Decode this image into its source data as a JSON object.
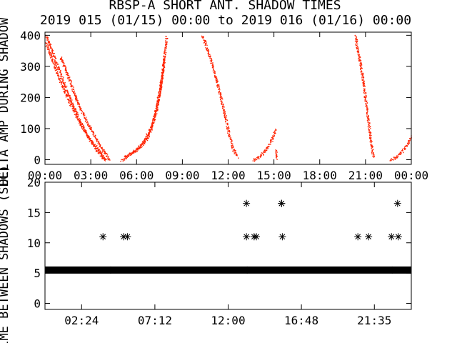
{
  "title": "RBSP-A SHORT ANT. SHADOW TIMES",
  "subtitle": "2019 015 (01/15) 00:00 to 2019 016 (01/16) 00:00",
  "colors": {
    "scatter": "#ff2200",
    "axes": "#000000",
    "background": "#ffffff"
  },
  "chart_data": [
    {
      "type": "scatter",
      "ylabel": "DELTA AMP DURING SHADOW",
      "ylim": [
        -15,
        410
      ],
      "yticks": [
        0,
        100,
        200,
        300,
        400
      ],
      "xlim": [
        0,
        24
      ],
      "xtick_labels": [
        "00:00",
        "03:00",
        "06:00",
        "09:00",
        "12:00",
        "15:00",
        "18:00",
        "21:00",
        "00:00"
      ],
      "xtick_values": [
        0,
        3,
        6,
        9,
        12,
        15,
        18,
        21,
        24
      ],
      "marker_color": "#ff2200",
      "series": [
        {
          "x": [
            0.05,
            0.6,
            1.2,
            1.8,
            2.4,
            3.0,
            3.6,
            4.0
          ],
          "y": [
            400,
            330,
            250,
            175,
            110,
            60,
            25,
            0
          ]
        },
        {
          "x": [
            0.05,
            0.7,
            1.4,
            2.1,
            2.8,
            3.4,
            3.9
          ],
          "y": [
            375,
            290,
            205,
            135,
            75,
            30,
            0
          ]
        },
        {
          "x": [
            1.0,
            1.5,
            2.0,
            2.6,
            3.2,
            3.8,
            4.2
          ],
          "y": [
            330,
            270,
            200,
            135,
            80,
            30,
            0
          ]
        },
        {
          "x": [
            5.0,
            5.6,
            6.2,
            6.8,
            7.3,
            7.7,
            7.95
          ],
          "y": [
            0,
            20,
            40,
            80,
            160,
            280,
            400
          ]
        },
        {
          "x": [
            5.2,
            5.8,
            6.4,
            7.0,
            7.5,
            7.8
          ],
          "y": [
            10,
            28,
            55,
            110,
            220,
            330
          ]
        },
        {
          "x": [
            10.3,
            10.8,
            11.3,
            11.7,
            12.0,
            12.3,
            12.6
          ],
          "y": [
            400,
            330,
            240,
            160,
            90,
            35,
            10
          ]
        },
        {
          "x": [
            13.6,
            14.0,
            14.4,
            14.8,
            15.1
          ],
          "y": [
            0,
            10,
            30,
            60,
            100
          ]
        },
        {
          "x": [
            15.1,
            15.2
          ],
          "y": [
            30,
            5
          ]
        },
        {
          "x": [
            20.3,
            20.6,
            20.9,
            21.1,
            21.3,
            21.5
          ],
          "y": [
            400,
            320,
            230,
            150,
            75,
            10
          ]
        },
        {
          "x": [
            22.6,
            23.0,
            23.5,
            24.0
          ],
          "y": [
            0,
            10,
            35,
            75
          ]
        }
      ]
    },
    {
      "type": "scatter",
      "ylabel": "TIME BETWEEN SHADOWS (SEC)",
      "ylim": [
        -1,
        20
      ],
      "yticks": [
        0,
        5,
        10,
        15,
        20
      ],
      "xlim": [
        0,
        24
      ],
      "xtick_labels": [
        "02:24",
        "07:12",
        "12:00",
        "16:48",
        "21:35"
      ],
      "xtick_values": [
        2.4,
        7.2,
        12.0,
        16.8,
        21.58
      ],
      "marker": "*",
      "band": {
        "x_start": 0,
        "x_end": 24,
        "y": 5.5
      },
      "x": [
        3.8,
        4.3,
        5.15,
        5.4,
        13.2,
        13.2,
        13.25,
        13.7,
        13.85,
        15.5,
        15.5,
        15.55,
        20.5,
        21.2,
        22.7,
        22.75,
        23.1,
        23.15
      ],
      "y": [
        11,
        5.5,
        11,
        11,
        16.5,
        11,
        5.5,
        11,
        11,
        16.5,
        16.5,
        11,
        11,
        11,
        11,
        5.5,
        16.5,
        11
      ]
    }
  ]
}
